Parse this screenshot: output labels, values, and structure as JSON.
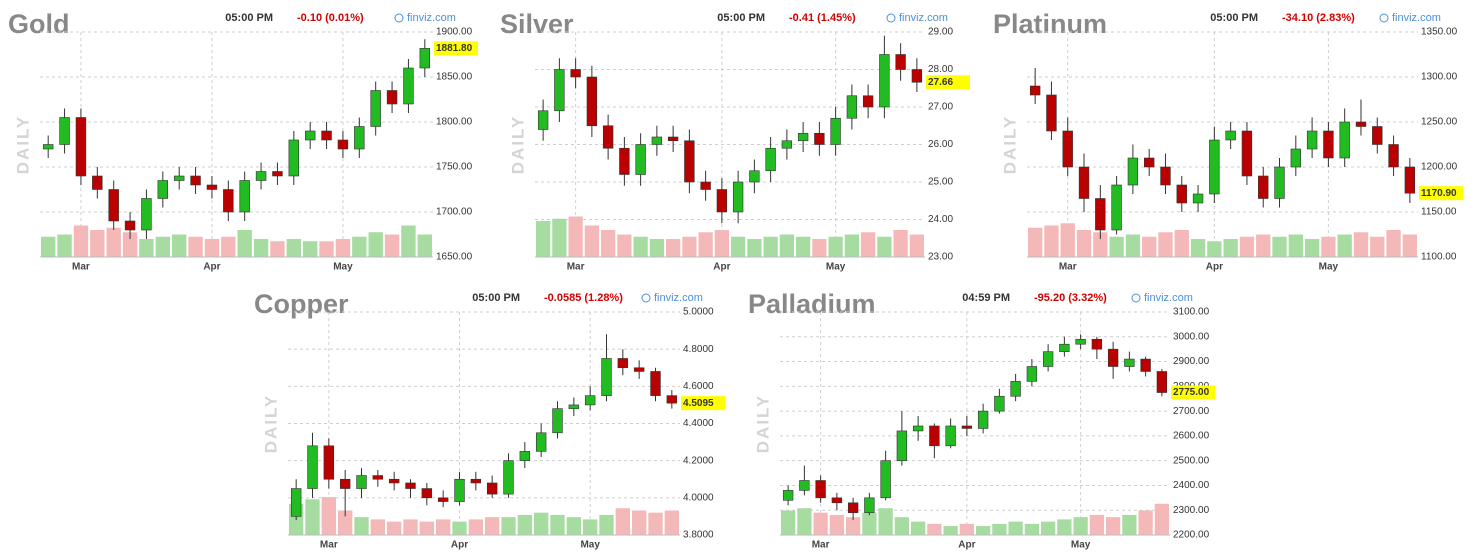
{
  "chart_data": [
    {
      "type": "candlestick",
      "title": "Gold",
      "time": "05:00 PM",
      "change": "-0.10 (0.01%)",
      "source": "finviz.com",
      "side_label": "DAILY",
      "categories": [
        null,
        null,
        "Mar",
        null,
        null,
        null,
        null,
        null,
        null,
        null,
        "Apr",
        null,
        null,
        null,
        null,
        null,
        null,
        null,
        "May",
        null,
        null,
        null,
        null,
        null
      ],
      "open": [
        1770,
        1775,
        1805,
        1740,
        1725,
        1690,
        1680,
        1715,
        1735,
        1740,
        1730,
        1725,
        1700,
        1735,
        1745,
        1740,
        1780,
        1790,
        1780,
        1770,
        1795,
        1835,
        1820,
        1860
      ],
      "high": [
        1785,
        1815,
        1815,
        1750,
        1735,
        1700,
        1725,
        1745,
        1750,
        1750,
        1740,
        1735,
        1745,
        1755,
        1755,
        1790,
        1800,
        1800,
        1790,
        1805,
        1845,
        1845,
        1870,
        1892
      ],
      "low": [
        1760,
        1765,
        1730,
        1715,
        1680,
        1670,
        1670,
        1705,
        1725,
        1720,
        1715,
        1690,
        1690,
        1725,
        1730,
        1730,
        1770,
        1770,
        1760,
        1760,
        1785,
        1810,
        1810,
        1850
      ],
      "close": [
        1775,
        1805,
        1740,
        1725,
        1690,
        1680,
        1715,
        1735,
        1740,
        1730,
        1725,
        1700,
        1735,
        1745,
        1740,
        1780,
        1790,
        1780,
        1770,
        1795,
        1835,
        1820,
        1860,
        1881.8
      ],
      "volume": [
        45,
        50,
        70,
        60,
        65,
        55,
        40,
        45,
        50,
        45,
        40,
        45,
        60,
        40,
        35,
        40,
        35,
        35,
        40,
        45,
        55,
        50,
        70,
        50
      ],
      "last": {
        "value": 1881.8,
        "label": "1881.80"
      },
      "ylim": [
        1650,
        1900
      ],
      "yticks": [
        {
          "value": 1650,
          "label": "1650.00"
        },
        {
          "value": 1700,
          "label": "1700.00"
        },
        {
          "value": 1750,
          "label": "1750.00"
        },
        {
          "value": 1800,
          "label": "1800.00"
        },
        {
          "value": 1850,
          "label": "1850.00"
        },
        {
          "value": 1900,
          "label": "1900.00"
        }
      ],
      "grid": true,
      "up_color": "#22bb22",
      "down_color": "#bb0000",
      "volume_up_color": "#a6dca0",
      "volume_down_color": "#f5b8b8"
    },
    {
      "type": "candlestick",
      "title": "Silver",
      "time": "05:00 PM",
      "change": "-0.41 (1.45%)",
      "source": "finviz.com",
      "side_label": "DAILY",
      "categories": [
        null,
        null,
        "Mar",
        null,
        null,
        null,
        null,
        null,
        null,
        null,
        null,
        "Apr",
        null,
        null,
        null,
        null,
        null,
        null,
        "May",
        null,
        null,
        null,
        null,
        null
      ],
      "open": [
        26.4,
        26.9,
        28.0,
        27.8,
        26.5,
        25.9,
        25.2,
        26.0,
        26.2,
        26.1,
        25.0,
        24.8,
        24.2,
        25.0,
        25.3,
        25.9,
        26.1,
        26.3,
        26.0,
        26.7,
        27.3,
        27.0,
        28.4,
        28.0
      ],
      "high": [
        27.2,
        28.3,
        28.3,
        28.1,
        26.8,
        26.2,
        26.3,
        26.5,
        26.5,
        26.4,
        25.3,
        25.1,
        25.3,
        25.6,
        26.2,
        26.4,
        26.6,
        26.6,
        27.0,
        27.6,
        27.6,
        28.9,
        28.7,
        28.3
      ],
      "low": [
        26.1,
        26.6,
        27.5,
        26.2,
        25.6,
        24.9,
        24.9,
        25.7,
        25.8,
        24.7,
        24.5,
        23.9,
        23.9,
        24.7,
        25.0,
        25.6,
        25.8,
        25.7,
        25.7,
        26.4,
        26.7,
        26.7,
        27.7,
        27.4
      ],
      "close": [
        26.9,
        28.0,
        27.8,
        26.5,
        25.9,
        25.2,
        26.0,
        26.2,
        26.1,
        25.0,
        24.8,
        24.2,
        25.0,
        25.3,
        25.9,
        26.1,
        26.3,
        26.0,
        26.7,
        27.3,
        27.0,
        28.4,
        28.0,
        27.66
      ],
      "volume": [
        80,
        85,
        90,
        70,
        60,
        50,
        45,
        40,
        40,
        45,
        55,
        60,
        45,
        40,
        45,
        50,
        45,
        40,
        45,
        50,
        55,
        45,
        60,
        50
      ],
      "last": {
        "value": 27.66,
        "label": "27.66"
      },
      "ylim": [
        23,
        29
      ],
      "yticks": [
        {
          "value": 23,
          "label": "23.00"
        },
        {
          "value": 24,
          "label": "24.00"
        },
        {
          "value": 25,
          "label": "25.00"
        },
        {
          "value": 26,
          "label": "26.00"
        },
        {
          "value": 27,
          "label": "27.00"
        },
        {
          "value": 28,
          "label": "28.00"
        },
        {
          "value": 29,
          "label": "29.00"
        }
      ],
      "grid": true,
      "up_color": "#22bb22",
      "down_color": "#bb0000",
      "volume_up_color": "#a6dca0",
      "volume_down_color": "#f5b8b8"
    },
    {
      "type": "candlestick",
      "title": "Platinum",
      "time": "05:00 PM",
      "change": "-34.10 (2.83%)",
      "source": "finviz.com",
      "side_label": "DAILY",
      "categories": [
        null,
        null,
        "Mar",
        null,
        null,
        null,
        null,
        null,
        null,
        null,
        null,
        "Apr",
        null,
        null,
        null,
        null,
        null,
        null,
        "May",
        null,
        null,
        null,
        null,
        null
      ],
      "open": [
        1290,
        1280,
        1240,
        1200,
        1165,
        1130,
        1180,
        1210,
        1200,
        1180,
        1160,
        1170,
        1230,
        1240,
        1190,
        1165,
        1200,
        1220,
        1240,
        1210,
        1250,
        1245,
        1225,
        1200
      ],
      "high": [
        1310,
        1295,
        1255,
        1215,
        1180,
        1190,
        1225,
        1220,
        1215,
        1190,
        1180,
        1245,
        1250,
        1250,
        1200,
        1210,
        1235,
        1255,
        1250,
        1265,
        1275,
        1255,
        1235,
        1210
      ],
      "low": [
        1270,
        1230,
        1190,
        1150,
        1120,
        1125,
        1170,
        1190,
        1170,
        1150,
        1150,
        1160,
        1220,
        1180,
        1155,
        1155,
        1190,
        1210,
        1200,
        1200,
        1235,
        1215,
        1190,
        1160
      ],
      "close": [
        1280,
        1240,
        1200,
        1165,
        1130,
        1180,
        1210,
        1200,
        1180,
        1160,
        1170,
        1230,
        1240,
        1190,
        1165,
        1200,
        1220,
        1240,
        1210,
        1250,
        1245,
        1225,
        1200,
        1170.9
      ],
      "volume": [
        65,
        70,
        75,
        60,
        55,
        45,
        50,
        45,
        55,
        60,
        40,
        35,
        40,
        45,
        50,
        45,
        50,
        40,
        45,
        50,
        55,
        45,
        60,
        50
      ],
      "last": {
        "value": 1170.9,
        "label": "1170.90"
      },
      "ylim": [
        1100,
        1350
      ],
      "yticks": [
        {
          "value": 1100,
          "label": "1100.00"
        },
        {
          "value": 1150,
          "label": "1150.00"
        },
        {
          "value": 1200,
          "label": "1200.00"
        },
        {
          "value": 1250,
          "label": "1250.00"
        },
        {
          "value": 1300,
          "label": "1300.00"
        },
        {
          "value": 1350,
          "label": "1350.00"
        }
      ],
      "grid": true,
      "up_color": "#22bb22",
      "down_color": "#bb0000",
      "volume_up_color": "#a6dca0",
      "volume_down_color": "#f5b8b8"
    },
    {
      "type": "candlestick",
      "title": "Copper",
      "time": "05:00 PM",
      "change": "-0.0585 (1.28%)",
      "source": "finviz.com",
      "side_label": "DAILY",
      "categories": [
        null,
        null,
        "Mar",
        null,
        null,
        null,
        null,
        null,
        null,
        null,
        "Apr",
        null,
        null,
        null,
        null,
        null,
        null,
        null,
        "May",
        null,
        null,
        null,
        null,
        null
      ],
      "open": [
        3.9,
        4.05,
        4.28,
        4.1,
        4.05,
        4.12,
        4.1,
        4.08,
        4.05,
        4.0,
        3.98,
        4.1,
        4.08,
        4.02,
        4.2,
        4.25,
        4.35,
        4.48,
        4.5,
        4.55,
        4.75,
        4.7,
        4.68,
        4.55
      ],
      "high": [
        4.1,
        4.35,
        4.32,
        4.15,
        4.16,
        4.15,
        4.14,
        4.1,
        4.08,
        4.04,
        4.14,
        4.14,
        4.12,
        4.24,
        4.3,
        4.4,
        4.52,
        4.54,
        4.6,
        4.88,
        4.8,
        4.74,
        4.7,
        4.58
      ],
      "low": [
        3.88,
        4.0,
        4.05,
        3.9,
        4.0,
        4.06,
        4.04,
        4.0,
        3.96,
        3.95,
        3.96,
        4.04,
        4.0,
        4.0,
        4.16,
        4.22,
        4.32,
        4.44,
        4.47,
        4.52,
        4.66,
        4.64,
        4.52,
        4.48
      ],
      "close": [
        4.05,
        4.28,
        4.1,
        4.05,
        4.12,
        4.1,
        4.08,
        4.05,
        4.0,
        3.98,
        4.1,
        4.08,
        4.02,
        4.2,
        4.25,
        4.35,
        4.48,
        4.5,
        4.55,
        4.75,
        4.7,
        4.68,
        4.55,
        4.5095
      ],
      "volume": [
        70,
        80,
        85,
        55,
        40,
        35,
        30,
        35,
        30,
        35,
        30,
        35,
        40,
        40,
        45,
        50,
        45,
        40,
        35,
        45,
        60,
        55,
        50,
        55
      ],
      "last": {
        "value": 4.5095,
        "label": "4.5095"
      },
      "ylim": [
        3.8,
        5.0
      ],
      "yticks": [
        {
          "value": 3.8,
          "label": "3.8000"
        },
        {
          "value": 4.0,
          "label": "4.0000"
        },
        {
          "value": 4.2,
          "label": "4.2000"
        },
        {
          "value": 4.4,
          "label": "4.4000"
        },
        {
          "value": 4.6,
          "label": "4.6000"
        },
        {
          "value": 4.8,
          "label": "4.8000"
        },
        {
          "value": 5.0,
          "label": "5.0000"
        }
      ],
      "grid": true,
      "up_color": "#22bb22",
      "down_color": "#bb0000",
      "volume_up_color": "#a6dca0",
      "volume_down_color": "#f5b8b8"
    },
    {
      "type": "candlestick",
      "title": "Palladium",
      "time": "04:59 PM",
      "change": "-95.20 (3.32%)",
      "source": "finviz.com",
      "side_label": "DAILY",
      "categories": [
        null,
        null,
        "Mar",
        null,
        null,
        null,
        null,
        null,
        null,
        null,
        null,
        "Apr",
        null,
        null,
        null,
        null,
        null,
        null,
        "May",
        null,
        null,
        null,
        null,
        null
      ],
      "open": [
        2340,
        2380,
        2420,
        2350,
        2330,
        2290,
        2350,
        2500,
        2620,
        2640,
        2560,
        2640,
        2630,
        2700,
        2760,
        2820,
        2880,
        2940,
        2970,
        2990,
        2950,
        2880,
        2910,
        2860
      ],
      "high": [
        2400,
        2480,
        2440,
        2370,
        2350,
        2370,
        2540,
        2700,
        2680,
        2650,
        2670,
        2680,
        2730,
        2790,
        2850,
        2910,
        2970,
        3000,
        3010,
        3000,
        2980,
        2940,
        2920,
        2870
      ],
      "low": [
        2320,
        2360,
        2330,
        2300,
        2260,
        2280,
        2340,
        2480,
        2580,
        2510,
        2550,
        2600,
        2610,
        2690,
        2740,
        2800,
        2860,
        2920,
        2950,
        2910,
        2830,
        2860,
        2840,
        2760
      ],
      "close": [
        2380,
        2420,
        2350,
        2330,
        2290,
        2350,
        2500,
        2620,
        2640,
        2560,
        2640,
        2630,
        2700,
        2760,
        2820,
        2880,
        2940,
        2970,
        2990,
        2950,
        2880,
        2910,
        2860,
        2775
      ],
      "volume": [
        55,
        60,
        50,
        45,
        40,
        50,
        60,
        40,
        30,
        25,
        20,
        25,
        20,
        25,
        30,
        25,
        30,
        35,
        40,
        45,
        40,
        45,
        55,
        70
      ],
      "last": {
        "value": 2775,
        "label": "2775.00"
      },
      "ylim": [
        2200,
        3100
      ],
      "yticks": [
        {
          "value": 2200,
          "label": "2200.00"
        },
        {
          "value": 2300,
          "label": "2300.00"
        },
        {
          "value": 2400,
          "label": "2400.00"
        },
        {
          "value": 2500,
          "label": "2500.00"
        },
        {
          "value": 2600,
          "label": "2600.00"
        },
        {
          "value": 2700,
          "label": "2700.00"
        },
        {
          "value": 2800,
          "label": "2800.00"
        },
        {
          "value": 2900,
          "label": "2900.00"
        },
        {
          "value": 3000,
          "label": "3000.00"
        },
        {
          "value": 3100,
          "label": "3100.00"
        }
      ],
      "grid": true,
      "up_color": "#22bb22",
      "down_color": "#bb0000",
      "volume_up_color": "#a6dca0",
      "volume_down_color": "#f5b8b8"
    }
  ]
}
